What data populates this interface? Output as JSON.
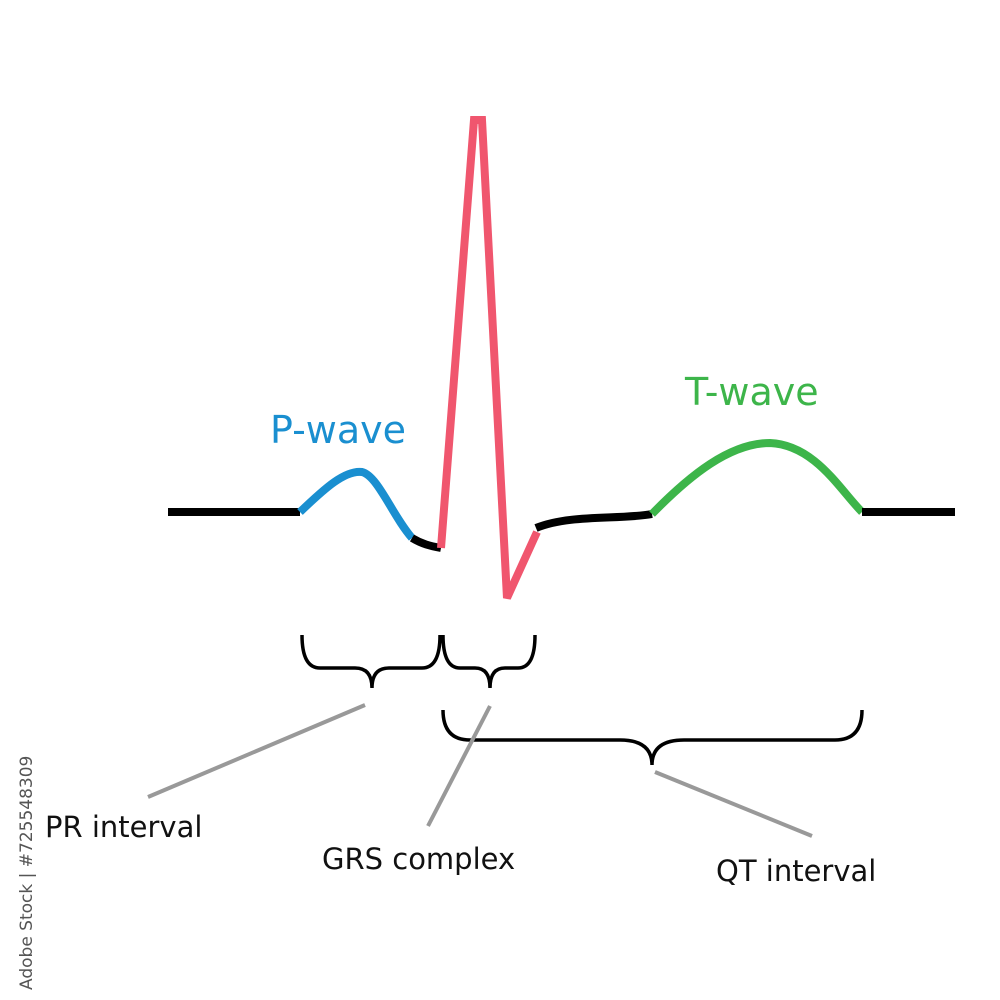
{
  "labels": {
    "p_wave": "P-wave",
    "t_wave": "T-wave",
    "pr_interval": "PR interval",
    "qrs_complex": "GRS complex",
    "qt_interval": "QT interval"
  },
  "watermark": "Adobe Stock | #725548309",
  "colors": {
    "baseline": "#000000",
    "p_wave": "#1a8fd0",
    "qrs": "#f0566e",
    "t_wave": "#3db54a",
    "leader": "#999999"
  }
}
